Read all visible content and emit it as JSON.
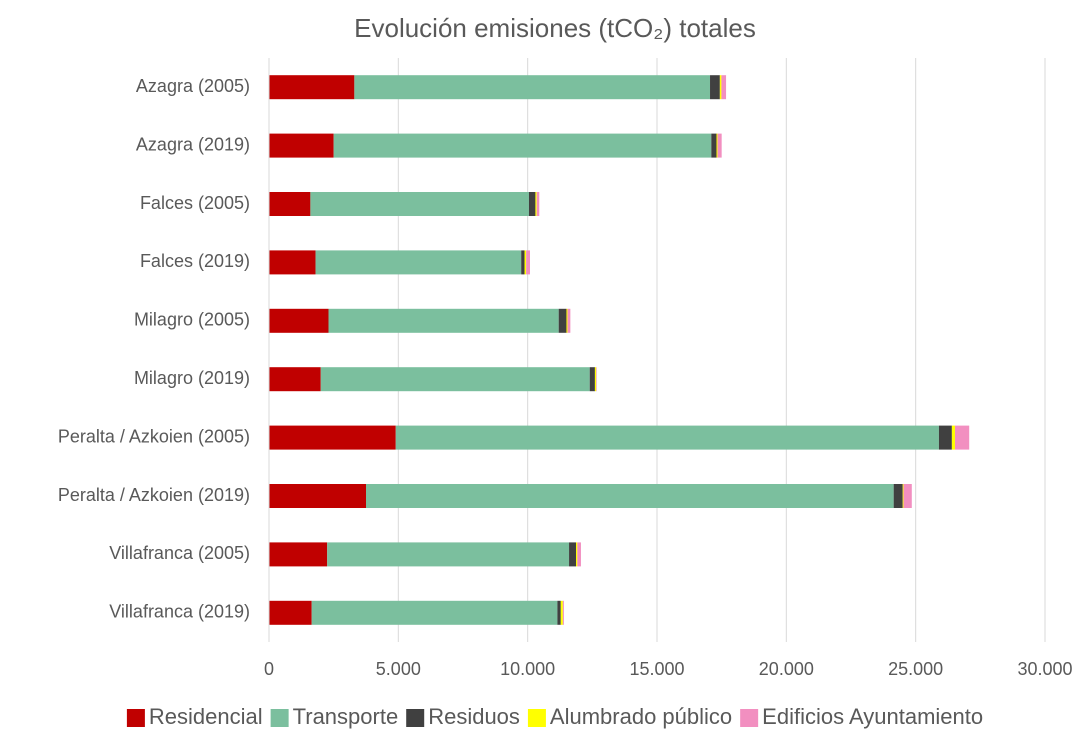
{
  "chart_data": {
    "type": "stacked_barh",
    "title": "Evolución emisiones (tCO₂) totales",
    "categories": [
      "Azagra (2005)",
      "Azagra (2019)",
      "Falces (2005)",
      "Falces (2019)",
      "Milagro (2005)",
      "Milagro (2019)",
      "Peralta / Azkoien (2005)",
      "Peralta / Azkoien (2019)",
      "Villafranca (2005)",
      "Villafranca (2019)"
    ],
    "series": [
      {
        "name": "Residencial",
        "color": "#c00000",
        "values": [
          3300,
          2500,
          1600,
          1800,
          2300,
          2000,
          4900,
          3750,
          2250,
          1650
        ]
      },
      {
        "name": "Transporte",
        "color": "#7bbf9e",
        "values": [
          13750,
          14600,
          8450,
          7950,
          8900,
          10400,
          21000,
          20400,
          9350,
          9500
        ]
      },
      {
        "name": "Residuos",
        "color": "#404040",
        "values": [
          380,
          200,
          250,
          130,
          300,
          200,
          500,
          350,
          270,
          130
        ]
      },
      {
        "name": "Alumbrado público",
        "color": "#ffff00",
        "values": [
          60,
          40,
          50,
          60,
          40,
          50,
          120,
          30,
          50,
          80
        ]
      },
      {
        "name": "Edificios Ayuntamiento",
        "color": "#f28fc0",
        "values": [
          180,
          160,
          100,
          150,
          110,
          20,
          550,
          320,
          140,
          40
        ]
      }
    ],
    "xlim": [
      0,
      30000
    ],
    "xticks": [
      0,
      {
        "value": 5000,
        "label": "5.000"
      },
      {
        "value": 10000,
        "label": "10.000"
      },
      {
        "value": 15000,
        "label": "15.000"
      },
      {
        "value": 20000,
        "label": "20.000"
      },
      {
        "value": 25000,
        "label": "25.000"
      },
      {
        "value": 30000,
        "label": "30.000"
      }
    ],
    "grid": true,
    "legend": "bottom"
  }
}
